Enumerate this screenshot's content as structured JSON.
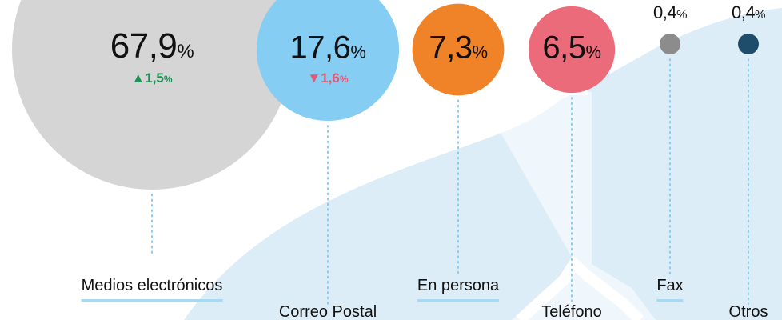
{
  "chart_data": {
    "type": "bubble",
    "unit": "%",
    "categories": [
      "Medios electrónicos",
      "Correo Postal",
      "En persona",
      "Teléfono",
      "Fax",
      "Otros"
    ],
    "values": [
      67.9,
      17.6,
      7.3,
      6.5,
      0.4,
      0.4
    ],
    "value_labels": [
      "67,9",
      "17,6",
      "7,3",
      "6,5",
      "0,4",
      "0,4"
    ],
    "changes": [
      {
        "direction": "up",
        "arrow": "▲",
        "value": 1.5,
        "label": "1,5",
        "unit": "%"
      },
      {
        "direction": "down",
        "arrow": "▼",
        "value": 1.6,
        "label": "1,6",
        "unit": "%"
      }
    ],
    "colors": [
      "#d5d5d5",
      "#86cdf3",
      "#f08227",
      "#ec6b7b",
      "#8c8c8c",
      "#1e4d6b"
    ],
    "change_colors": {
      "up": "#1f8f55",
      "down": "#e05a73"
    },
    "background_shape_color": "#dcedf8",
    "leader_line_color": "#86cdf3"
  }
}
